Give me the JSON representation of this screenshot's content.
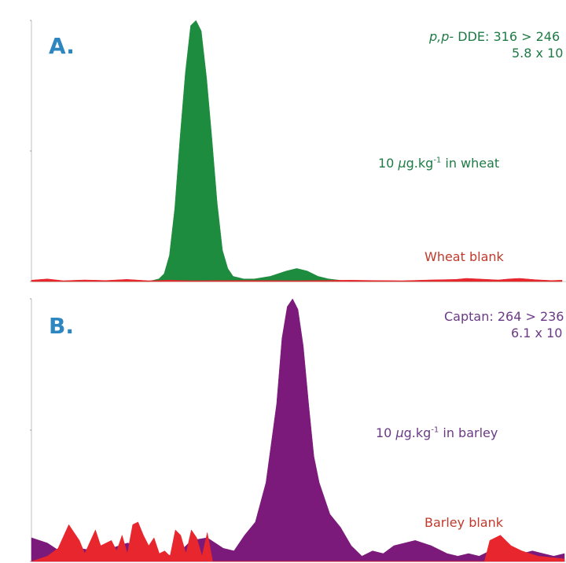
{
  "panel_a": {
    "letter": "A.",
    "compound_prefix": "p,p-",
    "compound_rest": " DDE: 316 > 246",
    "intensity": "5.8 x 10",
    "sample_label_pre": "10 ",
    "sample_label_mu": "μ",
    "sample_label_mid": "g.kg",
    "sample_label_sup": "-1",
    "sample_label_post": " in wheat",
    "blank_label": "Wheat blank",
    "colors": {
      "sample": "#1e8c3e",
      "blank": "#e8262e"
    }
  },
  "panel_b": {
    "letter": "B.",
    "compound_line1": "Captan: 264 > 236",
    "intensity": "6.1 x 10",
    "sample_label_pre": "10 ",
    "sample_label_mu": "μ",
    "sample_label_mid": "g.kg",
    "sample_label_sup": "-1",
    "sample_label_post": " in barley",
    "blank_label": "Barley blank",
    "colors": {
      "sample": "#7b1a7a",
      "blank": "#e8262e"
    }
  },
  "chart_data": [
    {
      "type": "area",
      "xlim": [
        0,
        100
      ],
      "ylim": [
        0,
        100
      ],
      "series": [
        {
          "name": "10 μg.kg-1 in wheat",
          "x": [
            0,
            5,
            10,
            15,
            20,
            22,
            24,
            25,
            26,
            27,
            28,
            29,
            30,
            31,
            32,
            33,
            34,
            35,
            36,
            37,
            38,
            40,
            42,
            45,
            48,
            50,
            52,
            54,
            56,
            58,
            60,
            62,
            65,
            70,
            75,
            80,
            85,
            90,
            95,
            100
          ],
          "y": [
            0,
            0,
            0,
            0,
            0,
            0,
            1,
            3,
            10,
            28,
            55,
            80,
            98,
            100,
            96,
            78,
            55,
            30,
            12,
            5,
            2,
            1,
            1,
            2,
            4,
            5,
            4,
            2,
            1,
            0.5,
            0,
            0,
            0,
            0,
            0,
            0,
            0,
            0,
            0,
            0
          ]
        },
        {
          "name": "Wheat blank",
          "x": [
            0,
            3,
            6,
            10,
            14,
            18,
            22,
            26,
            30,
            40,
            50,
            60,
            65,
            70,
            75,
            80,
            82,
            85,
            88,
            90,
            92,
            95,
            98,
            100
          ],
          "y": [
            0.5,
            1,
            0.3,
            0.6,
            0.4,
            0.8,
            0.3,
            0.5,
            0.3,
            0.4,
            0.3,
            0.5,
            0.4,
            0.3,
            0.6,
            0.8,
            1.2,
            0.9,
            0.6,
            1,
            1.2,
            0.7,
            0.4,
            0.5
          ]
        }
      ]
    },
    {
      "type": "area",
      "xlim": [
        0,
        100
      ],
      "ylim": [
        0,
        100
      ],
      "series": [
        {
          "name": "10 μg.kg-1 in barley",
          "x": [
            0,
            3,
            6,
            9,
            12,
            15,
            18,
            21,
            24,
            27,
            30,
            33,
            36,
            38,
            40,
            42,
            44,
            46,
            47,
            48,
            49,
            50,
            51,
            52,
            53,
            54,
            56,
            58,
            60,
            62,
            64,
            66,
            68,
            70,
            72,
            75,
            78,
            80,
            82,
            84,
            86,
            88,
            90,
            92,
            94,
            96,
            98,
            100
          ],
          "y": [
            9,
            7,
            3,
            5,
            4,
            5,
            7,
            6,
            3,
            2,
            8,
            9,
            5,
            4,
            10,
            15,
            30,
            60,
            85,
            97,
            100,
            96,
            82,
            60,
            40,
            30,
            18,
            13,
            6,
            2,
            4,
            3,
            6,
            7,
            8,
            6,
            3,
            2,
            3,
            2,
            4,
            5,
            4,
            3,
            4,
            3,
            2,
            3
          ]
        },
        {
          "name": "Barley blank",
          "x": [
            0,
            3,
            5,
            7,
            9,
            10,
            12,
            13,
            15,
            16,
            17,
            18,
            19,
            20,
            21,
            22,
            23,
            24,
            25,
            26,
            27,
            28,
            29,
            30,
            31,
            32,
            33,
            34,
            35,
            36,
            84,
            85,
            86,
            88,
            90,
            92,
            95,
            100
          ],
          "y": [
            0,
            2,
            5,
            14,
            8,
            3,
            12,
            6,
            8,
            4,
            10,
            3,
            14,
            15,
            10,
            6,
            9,
            3,
            4,
            2,
            12,
            10,
            3,
            12,
            9,
            2,
            11,
            0,
            0,
            0,
            0,
            0,
            8,
            10,
            6,
            4,
            2,
            1
          ]
        }
      ]
    }
  ]
}
